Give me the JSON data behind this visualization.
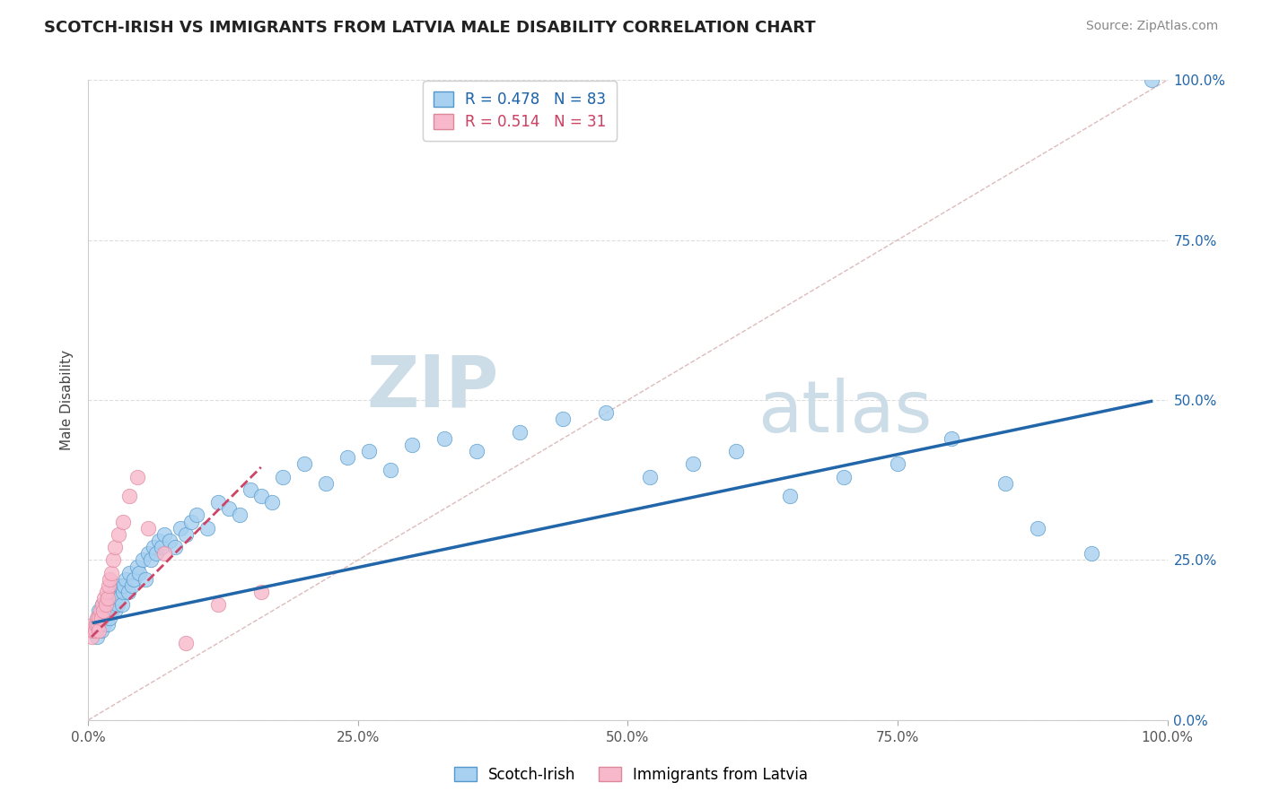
{
  "title": "SCOTCH-IRISH VS IMMIGRANTS FROM LATVIA MALE DISABILITY CORRELATION CHART",
  "source": "Source: ZipAtlas.com",
  "ylabel": "Male Disability",
  "r_blue": 0.478,
  "n_blue": 83,
  "r_pink": 0.514,
  "n_pink": 31,
  "blue_color": "#A8D0F0",
  "blue_edge_color": "#5599CC",
  "blue_line_color": "#2266AA",
  "pink_color": "#F8B8CC",
  "pink_edge_color": "#DD8899",
  "pink_line_color": "#CC4466",
  "diag_color": "#DDBBBB",
  "background_color": "#FFFFFF",
  "xlim": [
    0.0,
    1.0
  ],
  "ylim": [
    0.0,
    1.0
  ],
  "xticks": [
    0.0,
    0.25,
    0.5,
    0.75,
    1.0
  ],
  "yticks": [
    0.0,
    0.25,
    0.5,
    0.75,
    1.0
  ],
  "xtick_labels": [
    "0.0%",
    "25.0%",
    "50.0%",
    "75.0%",
    "100.0%"
  ],
  "ytick_labels": [
    "0.0%",
    "25.0%",
    "50.0%",
    "75.0%",
    "100.0%"
  ],
  "blue_x": [
    0.005,
    0.007,
    0.008,
    0.009,
    0.01,
    0.01,
    0.01,
    0.012,
    0.013,
    0.015,
    0.015,
    0.016,
    0.017,
    0.018,
    0.018,
    0.019,
    0.02,
    0.02,
    0.021,
    0.022,
    0.023,
    0.024,
    0.025,
    0.026,
    0.027,
    0.028,
    0.029,
    0.03,
    0.031,
    0.032,
    0.033,
    0.035,
    0.037,
    0.038,
    0.04,
    0.042,
    0.045,
    0.047,
    0.05,
    0.053,
    0.055,
    0.058,
    0.06,
    0.063,
    0.065,
    0.068,
    0.07,
    0.075,
    0.08,
    0.085,
    0.09,
    0.095,
    0.1,
    0.11,
    0.12,
    0.13,
    0.14,
    0.15,
    0.16,
    0.17,
    0.18,
    0.2,
    0.22,
    0.24,
    0.26,
    0.28,
    0.3,
    0.33,
    0.36,
    0.4,
    0.44,
    0.48,
    0.52,
    0.56,
    0.6,
    0.65,
    0.7,
    0.75,
    0.8,
    0.85,
    0.88,
    0.93,
    0.985
  ],
  "blue_y": [
    0.14,
    0.15,
    0.13,
    0.16,
    0.15,
    0.17,
    0.16,
    0.14,
    0.18,
    0.15,
    0.17,
    0.16,
    0.18,
    0.15,
    0.19,
    0.17,
    0.16,
    0.18,
    0.17,
    0.19,
    0.18,
    0.2,
    0.17,
    0.19,
    0.18,
    0.2,
    0.19,
    0.21,
    0.18,
    0.2,
    0.21,
    0.22,
    0.2,
    0.23,
    0.21,
    0.22,
    0.24,
    0.23,
    0.25,
    0.22,
    0.26,
    0.25,
    0.27,
    0.26,
    0.28,
    0.27,
    0.29,
    0.28,
    0.27,
    0.3,
    0.29,
    0.31,
    0.32,
    0.3,
    0.34,
    0.33,
    0.32,
    0.36,
    0.35,
    0.34,
    0.38,
    0.4,
    0.37,
    0.41,
    0.42,
    0.39,
    0.43,
    0.44,
    0.42,
    0.45,
    0.47,
    0.48,
    0.38,
    0.4,
    0.42,
    0.35,
    0.38,
    0.4,
    0.44,
    0.37,
    0.3,
    0.26,
    1.0
  ],
  "pink_x": [
    0.003,
    0.004,
    0.005,
    0.006,
    0.007,
    0.008,
    0.009,
    0.01,
    0.01,
    0.011,
    0.012,
    0.013,
    0.014,
    0.015,
    0.016,
    0.017,
    0.018,
    0.019,
    0.02,
    0.021,
    0.023,
    0.025,
    0.028,
    0.032,
    0.038,
    0.045,
    0.055,
    0.07,
    0.09,
    0.12,
    0.16
  ],
  "pink_y": [
    0.13,
    0.14,
    0.15,
    0.14,
    0.15,
    0.16,
    0.15,
    0.16,
    0.14,
    0.17,
    0.16,
    0.18,
    0.17,
    0.19,
    0.18,
    0.2,
    0.19,
    0.21,
    0.22,
    0.23,
    0.25,
    0.27,
    0.29,
    0.31,
    0.35,
    0.38,
    0.3,
    0.26,
    0.12,
    0.18,
    0.2
  ],
  "blue_line_x0": 0.005,
  "blue_line_x1": 0.985,
  "blue_line_y0": 0.152,
  "blue_line_y1": 0.498,
  "pink_line_x0": 0.003,
  "pink_line_x1": 0.16,
  "pink_line_y0": 0.13,
  "pink_line_y1": 0.395
}
